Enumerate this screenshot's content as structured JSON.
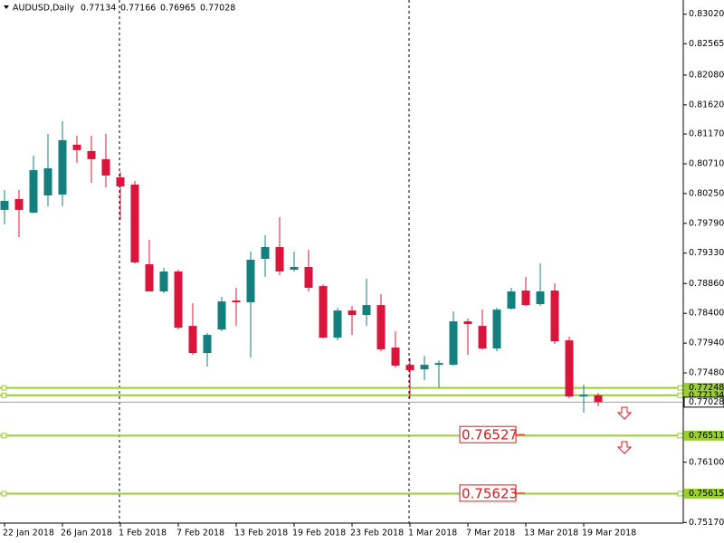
{
  "chart_data": {
    "type": "candlestick",
    "title": "AUDUSD,Daily",
    "header_values": [
      "0.77134",
      "0.77166",
      "0.76965",
      "0.77028"
    ],
    "categories": [
      "22 Jan 2018",
      null,
      null,
      null,
      "26 Jan 2018",
      null,
      null,
      null,
      "1 Feb 2018",
      null,
      null,
      null,
      "7 Feb 2018",
      null,
      null,
      null,
      "13 Feb 2018",
      null,
      null,
      null,
      "19 Feb 2018",
      null,
      null,
      null,
      "23 Feb 2018",
      null,
      null,
      null,
      "1 Mar 2018",
      null,
      null,
      null,
      "7 Mar 2018",
      null,
      null,
      null,
      "13 Mar 2018",
      null,
      null,
      null,
      "19 Mar 2018",
      null
    ],
    "open": [
      0.79998,
      0.80165,
      0.79956,
      0.80221,
      0.80235,
      0.81005,
      0.80907,
      0.80781,
      0.80501,
      0.80389,
      0.79158,
      0.78738,
      0.79046,
      0.78206,
      0.77787,
      0.7815,
      0.78598,
      0.7857,
      0.79242,
      0.79424,
      0.79074,
      0.79116,
      0.78822,
      0.78025,
      0.78444,
      0.78374,
      0.78528,
      0.77871,
      0.77605,
      0.77535,
      0.77605,
      0.77605,
      0.78276,
      0.78206,
      0.77857,
      0.78472,
      0.78752,
      0.78542,
      0.78752,
      0.77983,
      0.77115,
      0.77134
    ],
    "high": [
      0.80305,
      0.80305,
      0.80837,
      0.81173,
      0.81369,
      0.81145,
      0.81145,
      0.81173,
      0.80585,
      0.80445,
      0.79536,
      0.79102,
      0.79074,
      0.78556,
      0.78095,
      0.78654,
      0.78794,
      0.79354,
      0.79606,
      0.79886,
      0.79354,
      0.79382,
      0.7885,
      0.78486,
      0.78514,
      0.78934,
      0.78696,
      0.78122,
      0.77703,
      0.77745,
      0.77675,
      0.7843,
      0.78318,
      0.78458,
      0.78486,
      0.78794,
      0.78962,
      0.79172,
      0.78864,
      0.78039,
      0.77297,
      0.77166
    ],
    "low": [
      0.79774,
      0.79578,
      0.79942,
      0.80054,
      0.80054,
      0.80725,
      0.80417,
      0.80347,
      0.79844,
      0.79172,
      0.78738,
      0.7871,
      0.7815,
      0.77759,
      0.77577,
      0.78122,
      0.78206,
      0.77717,
      0.78962,
      0.7899,
      0.79046,
      0.78738,
      0.78011,
      0.77983,
      0.78067,
      0.78206,
      0.77815,
      0.77563,
      0.77087,
      0.77367,
      0.77255,
      0.77591,
      0.77759,
      0.77843,
      0.77815,
      0.78458,
      0.78514,
      0.78514,
      0.77927,
      0.77087,
      0.76863,
      0.76965
    ],
    "close": [
      0.80137,
      0.79998,
      0.80613,
      0.80641,
      0.81075,
      0.80921,
      0.80781,
      0.80529,
      0.80361,
      0.79186,
      0.78738,
      0.79046,
      0.78178,
      0.77787,
      0.78067,
      0.78584,
      0.7857,
      0.79228,
      0.79424,
      0.79046,
      0.79116,
      0.78794,
      0.78025,
      0.78444,
      0.78374,
      0.78528,
      0.77843,
      0.77591,
      0.77521,
      0.77605,
      0.77633,
      0.78276,
      0.78234,
      0.77857,
      0.78458,
      0.78738,
      0.78528,
      0.78738,
      0.77969,
      0.77115,
      0.77143,
      0.77028
    ],
    "up_color": "#13807f",
    "down_color": "#dc143c",
    "ylim": [
      0.7516,
      0.8324
    ],
    "yticks": [
      {
        "value": 0.8302,
        "label": "0.83020"
      },
      {
        "value": 0.82565,
        "label": "0.82565"
      },
      {
        "value": 0.8208,
        "label": "0.82080"
      },
      {
        "value": 0.8162,
        "label": "0.81620"
      },
      {
        "value": 0.8117,
        "label": "0.81170"
      },
      {
        "value": 0.8071,
        "label": "0.80710"
      },
      {
        "value": 0.8025,
        "label": "0.80250"
      },
      {
        "value": 0.7979,
        "label": "0.79790"
      },
      {
        "value": 0.7933,
        "label": "0.79330"
      },
      {
        "value": 0.7886,
        "label": "0.78860"
      },
      {
        "value": 0.784,
        "label": "0.78400"
      },
      {
        "value": 0.7794,
        "label": "0.77940"
      },
      {
        "value": 0.7748,
        "label": "0.77480"
      },
      {
        "value": 0.761,
        "label": "0.76100"
      },
      {
        "value": 0.7517,
        "label": "0.75170"
      }
    ],
    "levels": [
      {
        "value": 0.77248,
        "label": "0.77248"
      },
      {
        "value": 0.77134,
        "label": "0.77134"
      },
      {
        "value": 0.76511,
        "label": "0.76511"
      },
      {
        "value": 0.75615,
        "label": "0.75615"
      }
    ],
    "level_color": "#9acd32",
    "current": {
      "value": 0.77028,
      "label": "0.77028"
    },
    "annotations": [
      {
        "value": 0.76527,
        "text": "0.76527"
      },
      {
        "value": 0.75623,
        "text": "0.75623"
      }
    ]
  }
}
